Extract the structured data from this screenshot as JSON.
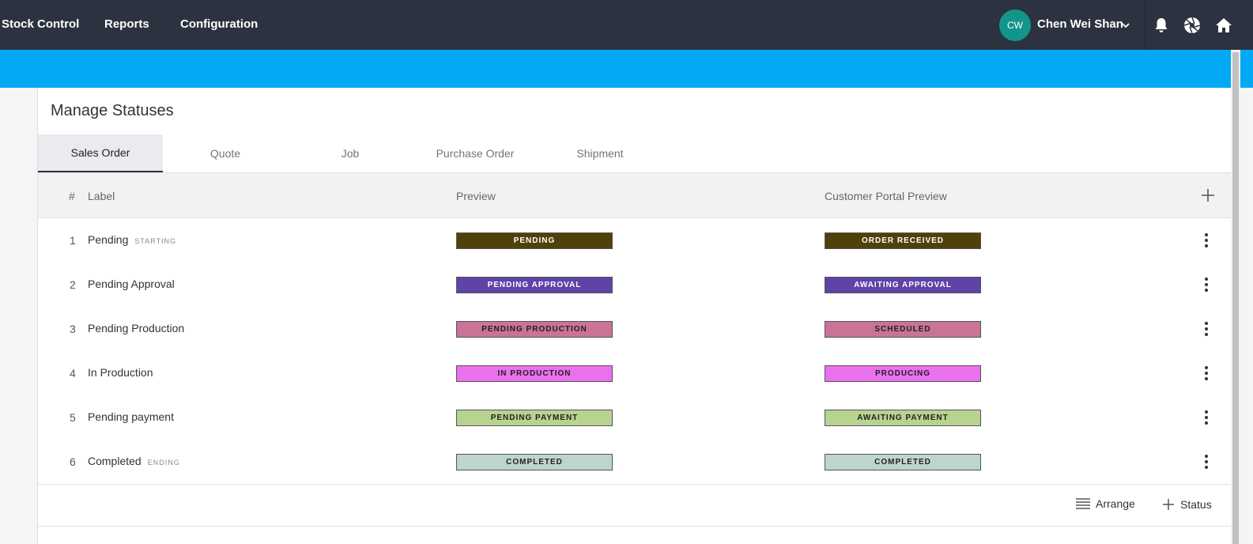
{
  "topnav": {
    "items": [
      "Stock Control",
      "Reports",
      "Configuration"
    ],
    "user": {
      "initials": "CW",
      "name": "Chen Wei Shan"
    },
    "icons": [
      "bell-icon",
      "aperture-icon",
      "home-icon"
    ]
  },
  "page": {
    "title": "Manage Statuses"
  },
  "tabs": [
    "Sales Order",
    "Quote",
    "Job",
    "Purchase Order",
    "Shipment"
  ],
  "table": {
    "headers": {
      "num": "#",
      "label": "Label",
      "preview": "Preview",
      "portal": "Customer Portal Preview"
    },
    "rows": [
      {
        "num": "1",
        "label": "Pending",
        "tag": "STARTING",
        "preview": "PENDING",
        "portal": "ORDER RECEIVED",
        "color": "#4e420a",
        "text_color": "#ffffff"
      },
      {
        "num": "2",
        "label": "Pending Approval",
        "tag": "",
        "preview": "PENDING APPROVAL",
        "portal": "AWAITING APPROVAL",
        "color": "#5f43a6",
        "text_color": "#ffffff"
      },
      {
        "num": "3",
        "label": "Pending Production",
        "tag": "",
        "preview": "PENDING PRODUCTION",
        "portal": "SCHEDULED",
        "color": "#c97396",
        "text_color": "#222222"
      },
      {
        "num": "4",
        "label": "In Production",
        "tag": "",
        "preview": "IN PRODUCTION",
        "portal": "PRODUCING",
        "color": "#ea70ee",
        "text_color": "#222222"
      },
      {
        "num": "5",
        "label": "Pending payment",
        "tag": "",
        "preview": "PENDING PAYMENT",
        "portal": "AWAITING PAYMENT",
        "color": "#b6d390",
        "text_color": "#222222"
      },
      {
        "num": "6",
        "label": "Completed",
        "tag": "ENDING",
        "preview": "COMPLETED",
        "portal": "COMPLETED",
        "color": "#bdd4cf",
        "text_color": "#222222"
      }
    ]
  },
  "footer": {
    "arrange": "Arrange",
    "add_status": "Status"
  },
  "colors": {
    "topbar": "#2d3240",
    "accent_bar": "#03a9f4",
    "avatar": "#13968a"
  }
}
